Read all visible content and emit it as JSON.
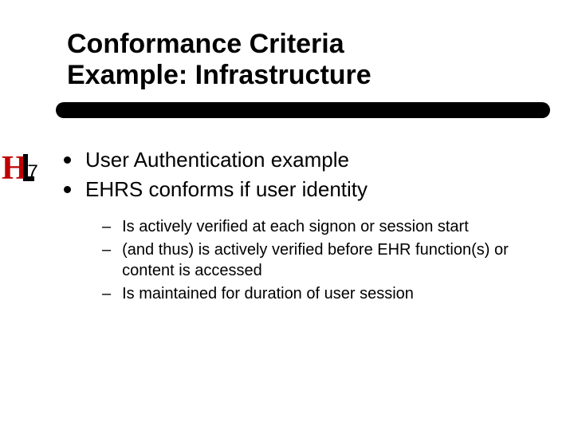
{
  "title": {
    "line1": "Conformance Criteria",
    "line2": "Example: Infrastructure",
    "fontsize": 34,
    "color": "#000000"
  },
  "underline": {
    "color": "#000000",
    "height": 20,
    "radius": 10
  },
  "logo": {
    "h_color": "#c00000",
    "bar_color": "#000000",
    "seven": "7"
  },
  "bullets": {
    "level1": [
      {
        "text": "User Authentication example"
      },
      {
        "text": "EHRS conforms if user identity"
      }
    ],
    "level2": [
      {
        "text": "Is actively verified at each signon or session start"
      },
      {
        "text": "(and thus) is actively verified before EHR function(s) or content is accessed"
      },
      {
        "text": "Is maintained for duration of user session"
      }
    ],
    "l1_fontsize": 26,
    "l2_fontsize": 20,
    "bullet_color": "#000000",
    "dash": "–"
  },
  "background_color": "#ffffff"
}
